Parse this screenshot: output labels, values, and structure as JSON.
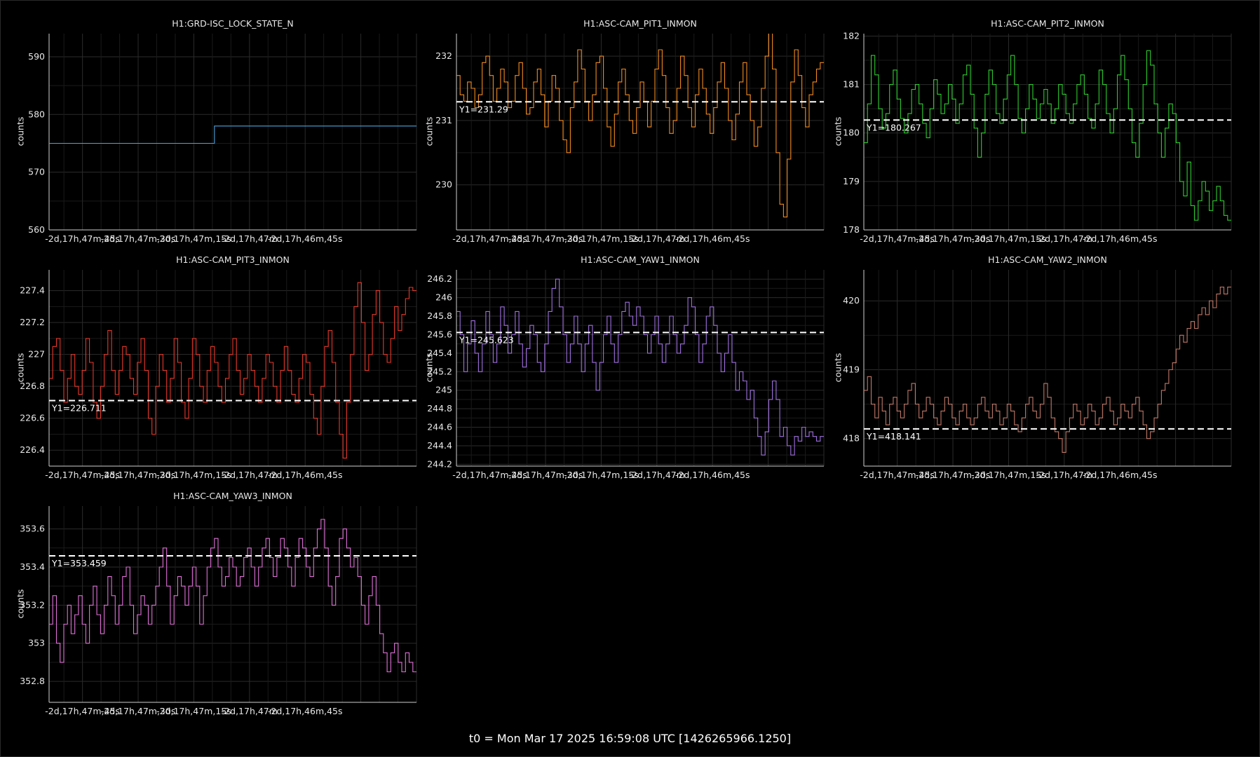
{
  "footer": "t0 = Mon Mar 17 2025 16:59:08 UTC [1426265966.1250]",
  "chart_data": [
    {
      "type": "line",
      "title": "H1:GRD-ISC_LOCK_STATE_N",
      "ylabel": "counts",
      "color": "#4aa3df",
      "ylim": [
        560,
        594
      ],
      "yticks": [
        "560",
        "570",
        "580",
        "590"
      ],
      "xlim": [
        -99,
        0
      ],
      "xticks": [
        {
          "x": -90,
          "label": "-2d,17h,47m,45s"
        },
        {
          "x": -75,
          "label": "-2d,17h,47m,30s"
        },
        {
          "x": -60,
          "label": "-2d,17h,47m,15s"
        },
        {
          "x": -45,
          "label": "-2d,17h,47m"
        },
        {
          "x": -30,
          "label": "-2d,17h,46m,45s"
        }
      ],
      "mean_line": null,
      "series_seed": 0,
      "series": [
        {
          "values": [
            575,
            575,
            575,
            575,
            575,
            575,
            575,
            575,
            575,
            575,
            575,
            575,
            575,
            575,
            575,
            575,
            575,
            575,
            575,
            575,
            575,
            575,
            575,
            575,
            575,
            575,
            575,
            575,
            575,
            575,
            575,
            575,
            575,
            575,
            575,
            575,
            575,
            575,
            575,
            575,
            575,
            575,
            575,
            575,
            575,
            578,
            578,
            578,
            578,
            578,
            578,
            578,
            578,
            578,
            578,
            578,
            578,
            578,
            578,
            578,
            578,
            578,
            578,
            578,
            578,
            578,
            578,
            578,
            578,
            578,
            578,
            578,
            578,
            578,
            578,
            578,
            578,
            578,
            578,
            578,
            578,
            578,
            578,
            578,
            578,
            578,
            578,
            578,
            578,
            578,
            578,
            578,
            578,
            578,
            578,
            578,
            578,
            578,
            578,
            578
          ]
        }
      ]
    },
    {
      "type": "line",
      "title": "H1:ASC-CAM_PIT1_INMON",
      "ylabel": "counts",
      "color": "#f28a1e",
      "ylim": [
        229.3,
        232.35
      ],
      "yticks": [
        "230",
        "231",
        "232"
      ],
      "xlim": [
        -99,
        0
      ],
      "xticks": [
        {
          "x": -90,
          "label": "-2d,17h,47m,45s"
        },
        {
          "x": -75,
          "label": "-2d,17h,47m,30s"
        },
        {
          "x": -60,
          "label": "-2d,17h,47m,15s"
        },
        {
          "x": -45,
          "label": "-2d,17h,47m"
        },
        {
          "x": -30,
          "label": "-2d,17h,46m,45s"
        }
      ],
      "mean_line": {
        "y": 231.29,
        "label": "Y1=231.29"
      },
      "series": [
        {
          "values": [
            231.7,
            231.4,
            231.3,
            231.6,
            231.5,
            231.2,
            231.4,
            231.9,
            232.0,
            231.7,
            231.3,
            231.5,
            231.8,
            231.6,
            231.2,
            231.3,
            231.7,
            231.9,
            231.5,
            231.1,
            231.2,
            231.6,
            231.8,
            231.4,
            230.9,
            231.3,
            231.7,
            231.5,
            231.0,
            230.7,
            230.5,
            231.2,
            231.6,
            232.1,
            231.8,
            231.3,
            231.0,
            231.4,
            231.9,
            232.0,
            231.5,
            230.9,
            230.6,
            231.1,
            231.6,
            231.8,
            231.4,
            231.0,
            230.8,
            231.2,
            231.6,
            231.3,
            230.9,
            231.3,
            231.8,
            232.1,
            231.7,
            231.2,
            230.8,
            231.0,
            231.5,
            232.0,
            231.7,
            231.2,
            230.9,
            231.4,
            231.8,
            231.5,
            231.1,
            230.8,
            231.2,
            231.6,
            231.9,
            231.5,
            231.0,
            230.7,
            231.1,
            231.6,
            231.9,
            231.4,
            231.0,
            230.6,
            230.9,
            231.5,
            232.0,
            232.4,
            231.8,
            230.5,
            229.7,
            229.5,
            230.4,
            231.6,
            232.1,
            231.7,
            231.2,
            230.9,
            231.4,
            231.6,
            231.8,
            231.9
          ]
        }
      ]
    },
    {
      "type": "line",
      "title": "H1:ASC-CAM_PIT2_INMON",
      "ylabel": "counts",
      "color": "#2ecc2e",
      "ylim": [
        178,
        182.05
      ],
      "yticks": [
        "178",
        "179",
        "180",
        "181",
        "182"
      ],
      "xlim": [
        -99,
        0
      ],
      "xticks": [
        {
          "x": -90,
          "label": "-2d,17h,47m,45s"
        },
        {
          "x": -75,
          "label": "-2d,17h,47m,30s"
        },
        {
          "x": -60,
          "label": "-2d,17h,47m,15s"
        },
        {
          "x": -45,
          "label": "-2d,17h,47m"
        },
        {
          "x": -30,
          "label": "-2d,17h,46m,45s"
        }
      ],
      "mean_line": {
        "y": 180.267,
        "label": "Y1=180.267"
      },
      "series": [
        {
          "values": [
            179.8,
            180.6,
            181.6,
            181.2,
            180.5,
            180.1,
            180.4,
            181.0,
            181.3,
            180.7,
            180.3,
            180.0,
            180.4,
            180.9,
            181.0,
            180.6,
            180.2,
            179.9,
            180.5,
            181.1,
            180.8,
            180.4,
            180.6,
            181.0,
            180.7,
            180.2,
            180.6,
            181.2,
            181.4,
            180.8,
            180.1,
            179.5,
            180.0,
            180.8,
            181.3,
            181.0,
            180.4,
            180.2,
            180.7,
            181.2,
            181.6,
            181.0,
            180.3,
            180.0,
            180.5,
            181.0,
            180.7,
            180.3,
            180.6,
            180.9,
            180.6,
            180.2,
            180.5,
            181.0,
            180.8,
            180.4,
            180.2,
            180.6,
            181.0,
            181.2,
            180.8,
            180.3,
            180.1,
            180.6,
            181.3,
            181.0,
            180.4,
            180.0,
            180.5,
            181.2,
            181.6,
            181.1,
            180.5,
            179.8,
            179.5,
            180.2,
            181.0,
            181.7,
            181.4,
            180.6,
            180.0,
            179.5,
            180.1,
            180.6,
            180.4,
            179.8,
            179.0,
            178.7,
            179.4,
            178.5,
            178.2,
            178.6,
            179.0,
            178.8,
            178.4,
            178.6,
            178.9,
            178.6,
            178.3,
            178.2
          ]
        }
      ]
    },
    {
      "type": "line",
      "title": "H1:ASC-CAM_PIT3_INMON",
      "ylabel": "counts",
      "color": "#e8382a",
      "ylim": [
        226.3,
        227.53
      ],
      "yticks": [
        "226.4",
        "226.6",
        "226.8",
        "227",
        "227.2",
        "227.4"
      ],
      "xlim": [
        -99,
        0
      ],
      "xticks": [
        {
          "x": -90,
          "label": "-2d,17h,47m,45s"
        },
        {
          "x": -75,
          "label": "-2d,17h,47m,30s"
        },
        {
          "x": -60,
          "label": "-2d,17h,47m,15s"
        },
        {
          "x": -45,
          "label": "-2d,17h,47m"
        },
        {
          "x": -30,
          "label": "-2d,17h,46m,45s"
        }
      ],
      "mean_line": {
        "y": 226.711,
        "label": "Y1=226.711"
      },
      "series": [
        {
          "values": [
            226.85,
            227.05,
            227.1,
            226.9,
            226.7,
            226.85,
            227.0,
            226.8,
            226.75,
            226.9,
            227.1,
            226.95,
            226.7,
            226.6,
            226.8,
            227.0,
            227.15,
            226.9,
            226.75,
            226.9,
            227.05,
            227.0,
            226.85,
            226.75,
            226.95,
            227.1,
            226.9,
            226.6,
            226.5,
            226.8,
            227.0,
            226.9,
            226.7,
            226.85,
            227.1,
            226.95,
            226.7,
            226.6,
            226.85,
            227.1,
            227.0,
            226.8,
            226.7,
            226.9,
            227.05,
            226.95,
            226.8,
            226.7,
            226.85,
            227.0,
            227.1,
            226.9,
            226.75,
            226.85,
            227.0,
            226.9,
            226.8,
            226.7,
            226.85,
            227.0,
            226.95,
            226.8,
            226.7,
            226.9,
            227.05,
            226.9,
            226.75,
            226.7,
            226.85,
            227.0,
            226.95,
            226.75,
            226.6,
            226.5,
            226.8,
            227.05,
            227.15,
            226.95,
            226.7,
            226.5,
            226.35,
            226.7,
            227.0,
            227.3,
            227.45,
            227.2,
            226.9,
            227.0,
            227.25,
            227.4,
            227.2,
            227.0,
            226.95,
            227.1,
            227.3,
            227.15,
            227.25,
            227.35,
            227.42,
            227.4
          ]
        }
      ]
    },
    {
      "type": "line",
      "title": "H1:ASC-CAM_YAW1_INMON",
      "ylabel": "counts",
      "color": "#a070e0",
      "ylim": [
        244.18,
        246.3
      ],
      "yticks": [
        "244.2",
        "244.4",
        "244.6",
        "244.8",
        "245",
        "245.2",
        "245.4",
        "245.6",
        "245.8",
        "246",
        "246.2"
      ],
      "xlim": [
        -99,
        0
      ],
      "xticks": [
        {
          "x": -90,
          "label": "-2d,17h,47m,45s"
        },
        {
          "x": -75,
          "label": "-2d,17h,47m,30s"
        },
        {
          "x": -60,
          "label": "-2d,17h,47m,15s"
        },
        {
          "x": -45,
          "label": "-2d,17h,47m"
        },
        {
          "x": -30,
          "label": "-2d,17h,46m,45s"
        }
      ],
      "mean_line": {
        "y": 245.623,
        "label": "Y1=245.623"
      },
      "series": [
        {
          "values": [
            245.85,
            245.6,
            245.2,
            245.5,
            245.75,
            245.4,
            245.2,
            245.5,
            245.85,
            245.6,
            245.3,
            245.5,
            245.9,
            245.7,
            245.4,
            245.6,
            245.85,
            245.5,
            245.25,
            245.45,
            245.7,
            245.6,
            245.3,
            245.2,
            245.5,
            245.85,
            246.1,
            246.2,
            245.9,
            245.6,
            245.3,
            245.5,
            245.8,
            245.5,
            245.2,
            245.5,
            245.7,
            245.3,
            245.0,
            245.3,
            245.6,
            245.8,
            245.5,
            245.3,
            245.6,
            245.85,
            245.95,
            245.8,
            245.7,
            245.9,
            245.8,
            245.6,
            245.4,
            245.6,
            245.8,
            245.5,
            245.3,
            245.5,
            245.8,
            245.6,
            245.4,
            245.5,
            245.7,
            246.0,
            245.9,
            245.6,
            245.3,
            245.5,
            245.8,
            245.9,
            245.7,
            245.4,
            245.2,
            245.4,
            245.6,
            245.3,
            245.0,
            245.2,
            245.1,
            244.9,
            245.0,
            244.7,
            244.5,
            244.3,
            244.55,
            244.9,
            245.1,
            244.9,
            244.5,
            244.6,
            244.4,
            244.3,
            244.5,
            244.45,
            244.6,
            244.5,
            244.55,
            244.5,
            244.45,
            244.5
          ]
        }
      ]
    },
    {
      "type": "line",
      "title": "H1:ASC-CAM_YAW2_INMON",
      "ylabel": "counts",
      "color": "#c07868",
      "ylim": [
        417.6,
        420.45
      ],
      "yticks": [
        "418",
        "419",
        "420"
      ],
      "xlim": [
        -99,
        0
      ],
      "xticks": [
        {
          "x": -90,
          "label": "-2d,17h,47m,45s"
        },
        {
          "x": -75,
          "label": "-2d,17h,47m,30s"
        },
        {
          "x": -60,
          "label": "-2d,17h,47m,15s"
        },
        {
          "x": -45,
          "label": "-2d,17h,47m"
        },
        {
          "x": -30,
          "label": "-2d,17h,46m,45s"
        }
      ],
      "mean_line": {
        "y": 418.141,
        "label": "Y1=418.141"
      },
      "series": [
        {
          "values": [
            418.7,
            418.9,
            418.5,
            418.3,
            418.6,
            418.4,
            418.2,
            418.5,
            418.6,
            418.4,
            418.3,
            418.5,
            418.7,
            418.8,
            418.5,
            418.3,
            418.4,
            418.6,
            418.5,
            418.3,
            418.2,
            418.4,
            418.6,
            418.5,
            418.3,
            418.2,
            418.4,
            418.5,
            418.3,
            418.2,
            418.3,
            418.5,
            418.6,
            418.4,
            418.3,
            418.5,
            418.4,
            418.2,
            418.3,
            418.5,
            418.4,
            418.2,
            418.1,
            418.3,
            418.5,
            418.6,
            418.4,
            418.3,
            418.5,
            418.8,
            418.6,
            418.3,
            418.1,
            418.0,
            417.8,
            418.1,
            418.3,
            418.5,
            418.4,
            418.2,
            418.3,
            418.5,
            418.4,
            418.2,
            418.3,
            418.5,
            418.6,
            418.4,
            418.2,
            418.3,
            418.5,
            418.4,
            418.3,
            418.5,
            418.6,
            418.4,
            418.2,
            418.0,
            418.1,
            418.3,
            418.5,
            418.7,
            418.8,
            419.0,
            419.1,
            419.3,
            419.5,
            419.4,
            419.6,
            419.7,
            419.6,
            419.8,
            419.9,
            419.8,
            420.0,
            419.9,
            420.1,
            420.2,
            420.1,
            420.2
          ]
        }
      ]
    },
    {
      "type": "line",
      "title": "H1:ASC-CAM_YAW3_INMON",
      "ylabel": "counts",
      "color": "#e070d8",
      "ylim": [
        352.69,
        353.72
      ],
      "yticks": [
        "352.8",
        "353",
        "353.2",
        "353.4",
        "353.6"
      ],
      "xlim": [
        -99,
        0
      ],
      "xticks": [
        {
          "x": -90,
          "label": "-2d,17h,47m,45s"
        },
        {
          "x": -75,
          "label": "-2d,17h,47m,30s"
        },
        {
          "x": -60,
          "label": "-2d,17h,47m,15s"
        },
        {
          "x": -45,
          "label": "-2d,17h,47m"
        },
        {
          "x": -30,
          "label": "-2d,17h,46m,45s"
        }
      ],
      "mean_line": {
        "y": 353.459,
        "label": "Y1=353.459"
      },
      "series": [
        {
          "values": [
            353.1,
            353.25,
            353.0,
            352.9,
            353.1,
            353.2,
            353.05,
            353.15,
            353.25,
            353.1,
            353.0,
            353.2,
            353.3,
            353.15,
            353.05,
            353.2,
            353.35,
            353.25,
            353.1,
            353.2,
            353.35,
            353.4,
            353.2,
            353.05,
            353.15,
            353.25,
            353.2,
            353.1,
            353.2,
            353.3,
            353.4,
            353.5,
            353.3,
            353.1,
            353.25,
            353.35,
            353.3,
            353.2,
            353.3,
            353.4,
            353.3,
            353.1,
            353.25,
            353.4,
            353.5,
            353.55,
            353.4,
            353.3,
            353.35,
            353.45,
            353.4,
            353.3,
            353.35,
            353.45,
            353.5,
            353.4,
            353.3,
            353.4,
            353.5,
            353.55,
            353.45,
            353.35,
            353.45,
            353.55,
            353.5,
            353.4,
            353.3,
            353.45,
            353.55,
            353.5,
            353.4,
            353.35,
            353.5,
            353.6,
            353.65,
            353.5,
            353.3,
            353.2,
            353.35,
            353.55,
            353.6,
            353.5,
            353.4,
            353.45,
            353.35,
            353.2,
            353.1,
            353.25,
            353.35,
            353.2,
            353.05,
            352.95,
            352.85,
            352.95,
            353.0,
            352.9,
            352.85,
            352.95,
            352.9,
            352.85
          ]
        }
      ]
    }
  ]
}
